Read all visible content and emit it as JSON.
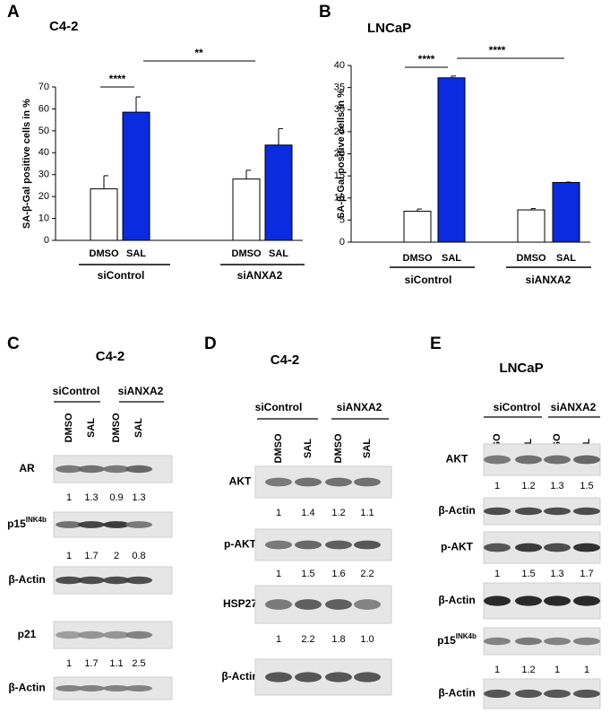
{
  "chart_data": [
    {
      "type": "bar",
      "panel": "A",
      "title": "C4-2",
      "y_label": "SA-β-Gal positive cells in %",
      "categories": [
        "DMSO",
        "SAL",
        "DMSO",
        "SAL"
      ],
      "groups": [
        "siControl",
        "siANXA2"
      ],
      "values": [
        23.5,
        58.5,
        28,
        43.5
      ],
      "errors": [
        6,
        7,
        4,
        7.5
      ],
      "colors": [
        "#ffffff",
        "#0a2be0",
        "#ffffff",
        "#0a2be0"
      ],
      "ylim": [
        0,
        70
      ],
      "yticks": [
        0,
        10,
        20,
        30,
        40,
        50,
        60,
        70
      ],
      "significance": [
        "****",
        "**"
      ]
    },
    {
      "type": "bar",
      "panel": "B",
      "title": "LNCaP",
      "y_label": "SA-β-Gal positive cells in %",
      "categories": [
        "DMSO",
        "SAL",
        "DMSO",
        "SAL"
      ],
      "groups": [
        "siControl",
        "siANXA2"
      ],
      "values": [
        7,
        37.2,
        7.3,
        13.5
      ],
      "errors": [
        0.5,
        0.4,
        0.3,
        0.1
      ],
      "colors": [
        "#ffffff",
        "#0a2be0",
        "#ffffff",
        "#0a2be0"
      ],
      "ylim": [
        0,
        40
      ],
      "yticks": [
        0,
        5,
        10,
        15,
        20,
        25,
        30,
        35,
        40
      ],
      "significance": [
        "****",
        "****"
      ]
    }
  ],
  "blots": [
    {
      "panel": "C",
      "title": "C4-2",
      "groups": [
        "siControl",
        "siANXA2"
      ],
      "lanes": [
        "DMSO",
        "SAL",
        "DMSO",
        "SAL"
      ],
      "rows": [
        {
          "label": "AR",
          "quant": [
            "1",
            "1.3",
            "0.9",
            "1.3"
          ]
        },
        {
          "label": "p15",
          "sup": "INK4b",
          "quant": [
            "1",
            "1.7",
            "2",
            "0.8"
          ]
        },
        {
          "label": "β-Actin"
        },
        {
          "label": "p21",
          "quant": [
            "1",
            "1.7",
            "1.1",
            "2.5"
          ]
        },
        {
          "label": "β-Actin"
        }
      ]
    },
    {
      "panel": "D",
      "title": "C4-2",
      "groups": [
        "siControl",
        "siANXA2"
      ],
      "lanes": [
        "DMSO",
        "SAL",
        "DMSO",
        "SAL"
      ],
      "rows": [
        {
          "label": "AKT",
          "quant": [
            "1",
            "1.4",
            "1.2",
            "1.1"
          ]
        },
        {
          "label": "p-AKT",
          "quant": [
            "1",
            "1.5",
            "1.6",
            "2.2"
          ]
        },
        {
          "label": "HSP27",
          "quant": [
            "1",
            "2.2",
            "1.8",
            "1.0"
          ]
        },
        {
          "label": "β-Actin"
        }
      ]
    },
    {
      "panel": "E",
      "title": "LNCaP",
      "groups": [
        "siControl",
        "siANXA2"
      ],
      "lanes": [
        "DMSO",
        "SAL",
        "DMSO",
        "SAL"
      ],
      "rows": [
        {
          "label": "AKT",
          "quant": [
            "1",
            "1.2",
            "1.3",
            "1.5"
          ]
        },
        {
          "label": "β-Actin"
        },
        {
          "label": "p-AKT",
          "quant": [
            "1",
            "1.5",
            "1.3",
            "1.7"
          ]
        },
        {
          "label": "β-Actin"
        },
        {
          "label": "p15",
          "sup": "INK4b",
          "quant": [
            "1",
            "1.2",
            "1",
            "1"
          ]
        },
        {
          "label": "β-Actin"
        }
      ]
    }
  ]
}
